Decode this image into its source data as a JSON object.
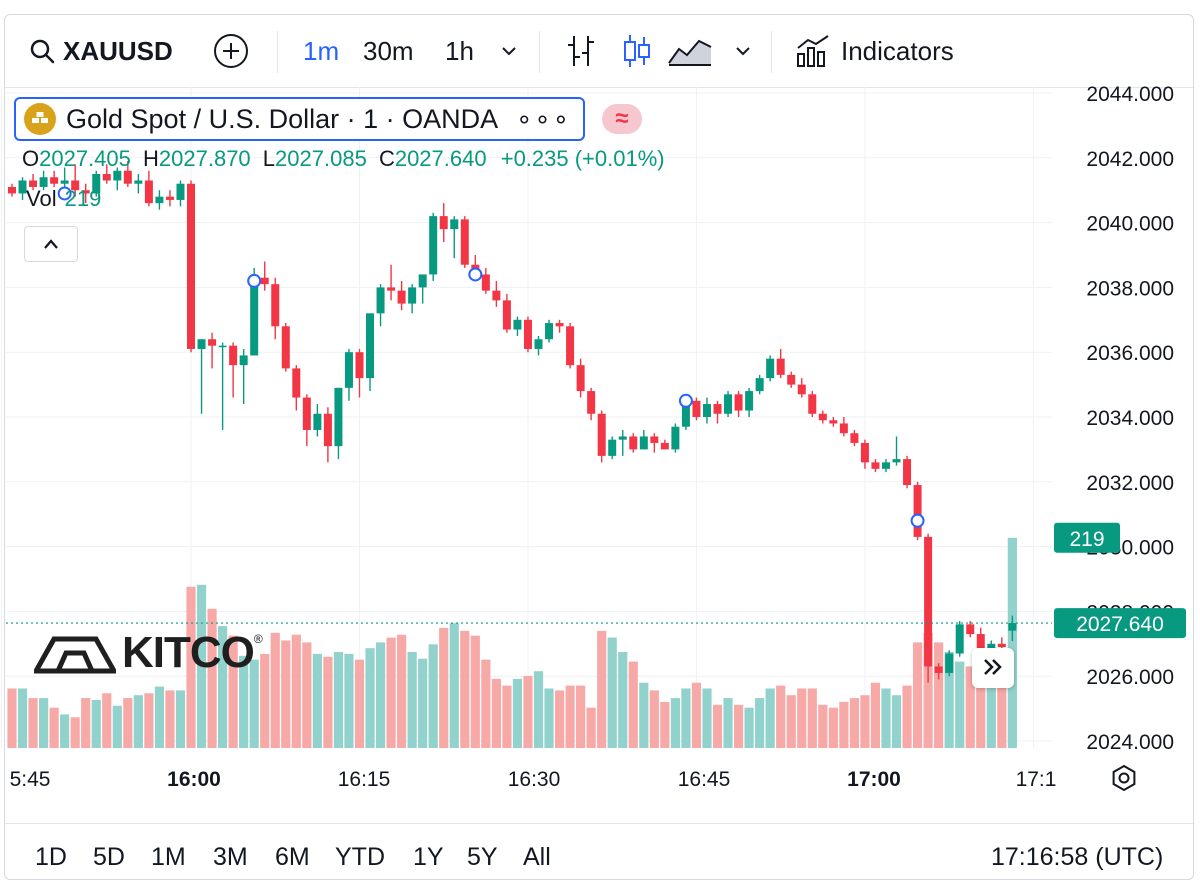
{
  "toolbar": {
    "symbol": "XAUUSD",
    "intervals": [
      "1m",
      "30m",
      "1h"
    ],
    "active_interval": "1m",
    "indicators_label": "Indicators"
  },
  "legend": {
    "title": "Gold Spot / U.S. Dollar · 1 · OANDA",
    "more": "∘∘∘",
    "wave": "≈",
    "o_label": "O",
    "o_value": "2027.405",
    "h_label": "H",
    "h_value": "2027.870",
    "l_label": "L",
    "l_value": "2027.085",
    "c_label": "C",
    "c_value": "2027.640",
    "change": "+0.235 (+0.01%)",
    "vol_label": "Vol",
    "vol_value": "219"
  },
  "watermark": {
    "brand": "KITCO",
    "reg": "®"
  },
  "range_buttons": [
    "1D",
    "5D",
    "1M",
    "3M",
    "6M",
    "YTD",
    "1Y",
    "5Y",
    "All"
  ],
  "clock": "17:16:58 (UTC)",
  "colors": {
    "up": "#089981",
    "down": "#f23645",
    "up_vol": "#92d2cc",
    "down_vol": "#f7a9a7",
    "accent": "#2962ff"
  },
  "chart_data": {
    "type": "candlestick",
    "y_axis": {
      "ticks": [
        "2024.000",
        "2026.000",
        "2028.000",
        "2030.000",
        "2032.000",
        "2034.000",
        "2036.000",
        "2038.000",
        "2040.000",
        "2042.000",
        "2044.000"
      ],
      "range": [
        2023.8,
        2044.3
      ]
    },
    "x_axis": {
      "ticks": [
        {
          "label": "5:45",
          "bold": false
        },
        {
          "label": "16:00",
          "bold": true
        },
        {
          "label": "16:15",
          "bold": false
        },
        {
          "label": "16:30",
          "bold": false
        },
        {
          "label": "16:45",
          "bold": false
        },
        {
          "label": "17:00",
          "bold": true
        },
        {
          "label": "17:1",
          "bold": false
        }
      ]
    },
    "last_price": "2027.640",
    "last_volume": "219",
    "candles": [
      [
        2041.1,
        2041.2,
        2040.8,
        2040.9,
        62
      ],
      [
        2040.9,
        2041.4,
        2040.7,
        2041.3,
        62
      ],
      [
        2041.3,
        2041.5,
        2041.0,
        2041.1,
        52
      ],
      [
        2041.1,
        2041.6,
        2041.0,
        2041.4,
        52
      ],
      [
        2041.4,
        2041.6,
        2041.1,
        2041.2,
        42
      ],
      [
        2041.2,
        2041.7,
        2041.0,
        2041.3,
        35
      ],
      [
        2041.3,
        2041.8,
        2040.8,
        2041.0,
        32
      ],
      [
        2041.0,
        2041.2,
        2040.6,
        2040.9,
        52
      ],
      [
        2040.9,
        2041.6,
        2040.8,
        2041.5,
        50
      ],
      [
        2041.5,
        2041.8,
        2041.2,
        2041.3,
        57
      ],
      [
        2041.3,
        2041.7,
        2041.0,
        2041.6,
        44
      ],
      [
        2041.6,
        2041.9,
        2041.1,
        2041.2,
        52
      ],
      [
        2041.2,
        2041.5,
        2040.9,
        2041.3,
        55
      ],
      [
        2041.3,
        2041.6,
        2040.5,
        2040.6,
        57
      ],
      [
        2040.6,
        2041.0,
        2040.4,
        2040.8,
        64
      ],
      [
        2040.8,
        2041.0,
        2040.5,
        2040.7,
        60
      ],
      [
        2040.7,
        2041.3,
        2040.5,
        2041.2,
        60
      ],
      [
        2041.2,
        2041.3,
        2036.0,
        2036.1,
        168
      ],
      [
        2036.1,
        2036.4,
        2034.1,
        2036.4,
        170
      ],
      [
        2036.4,
        2036.6,
        2035.5,
        2036.2,
        145
      ],
      [
        2036.2,
        2036.3,
        2033.6,
        2036.2,
        127
      ],
      [
        2036.2,
        2036.3,
        2034.6,
        2035.6,
        117
      ],
      [
        2035.6,
        2036.1,
        2034.4,
        2035.9,
        96
      ],
      [
        2035.9,
        2038.6,
        2035.9,
        2038.3,
        92
      ],
      [
        2038.3,
        2038.8,
        2037.9,
        2038.1,
        98
      ],
      [
        2038.1,
        2038.3,
        2036.4,
        2036.8,
        120
      ],
      [
        2036.8,
        2036.9,
        2035.4,
        2035.5,
        112
      ],
      [
        2035.5,
        2035.6,
        2034.2,
        2034.6,
        118
      ],
      [
        2034.6,
        2034.7,
        2033.1,
        2033.6,
        110
      ],
      [
        2033.6,
        2034.4,
        2033.4,
        2034.1,
        98
      ],
      [
        2034.1,
        2034.3,
        2032.6,
        2033.1,
        95
      ],
      [
        2033.1,
        2034.9,
        2032.7,
        2034.9,
        100
      ],
      [
        2034.9,
        2036.1,
        2034.5,
        2036.0,
        98
      ],
      [
        2036.0,
        2036.1,
        2034.6,
        2035.2,
        92
      ],
      [
        2035.2,
        2037.2,
        2034.8,
        2037.2,
        104
      ],
      [
        2037.2,
        2038.1,
        2036.8,
        2038.0,
        110
      ],
      [
        2038.0,
        2038.7,
        2037.6,
        2037.9,
        115
      ],
      [
        2037.9,
        2038.2,
        2037.3,
        2037.5,
        118
      ],
      [
        2037.5,
        2038.1,
        2037.2,
        2038.0,
        100
      ],
      [
        2038.0,
        2038.4,
        2037.5,
        2038.4,
        93
      ],
      [
        2038.4,
        2040.3,
        2038.2,
        2040.2,
        108
      ],
      [
        2040.2,
        2040.6,
        2039.4,
        2039.8,
        125
      ],
      [
        2039.8,
        2040.2,
        2038.9,
        2040.1,
        130
      ],
      [
        2040.1,
        2040.2,
        2038.6,
        2038.7,
        122
      ],
      [
        2038.7,
        2039.0,
        2038.2,
        2038.4,
        117
      ],
      [
        2038.4,
        2038.6,
        2037.8,
        2037.9,
        92
      ],
      [
        2037.9,
        2038.2,
        2037.4,
        2037.6,
        72
      ],
      [
        2037.6,
        2037.8,
        2036.6,
        2036.7,
        65
      ],
      [
        2036.7,
        2037.1,
        2036.5,
        2037.0,
        72
      ],
      [
        2037.0,
        2037.1,
        2036.0,
        2036.1,
        75
      ],
      [
        2036.1,
        2036.5,
        2035.9,
        2036.4,
        80
      ],
      [
        2036.4,
        2037.0,
        2036.3,
        2036.9,
        62
      ],
      [
        2036.9,
        2037.0,
        2036.6,
        2036.8,
        60
      ],
      [
        2036.8,
        2036.9,
        2035.5,
        2035.6,
        65
      ],
      [
        2035.6,
        2035.8,
        2034.6,
        2034.8,
        65
      ],
      [
        2034.8,
        2034.9,
        2033.9,
        2034.1,
        42
      ],
      [
        2034.1,
        2034.2,
        2032.6,
        2032.8,
        122
      ],
      [
        2032.8,
        2033.4,
        2032.7,
        2033.3,
        115
      ],
      [
        2033.3,
        2033.6,
        2032.8,
        2033.4,
        100
      ],
      [
        2033.4,
        2033.5,
        2032.9,
        2033.0,
        90
      ],
      [
        2033.0,
        2033.6,
        2033.0,
        2033.4,
        68
      ],
      [
        2033.4,
        2033.5,
        2032.9,
        2033.2,
        60
      ],
      [
        2033.2,
        2033.3,
        2033.0,
        2033.0,
        48
      ],
      [
        2033.0,
        2033.8,
        2032.9,
        2033.7,
        52
      ],
      [
        2033.7,
        2034.6,
        2033.6,
        2034.5,
        62
      ],
      [
        2034.5,
        2034.6,
        2033.9,
        2034.0,
        68
      ],
      [
        2034.0,
        2034.6,
        2033.8,
        2034.4,
        62
      ],
      [
        2034.4,
        2034.5,
        2033.8,
        2034.1,
        45
      ],
      [
        2034.1,
        2034.8,
        2034.0,
        2034.7,
        52
      ],
      [
        2034.7,
        2034.8,
        2034.0,
        2034.2,
        45
      ],
      [
        2034.2,
        2034.9,
        2034.0,
        2034.8,
        42
      ],
      [
        2034.8,
        2035.3,
        2034.7,
        2035.2,
        52
      ],
      [
        2035.2,
        2035.9,
        2035.1,
        2035.8,
        62
      ],
      [
        2035.8,
        2036.1,
        2035.2,
        2035.3,
        65
      ],
      [
        2035.3,
        2035.4,
        2034.9,
        2035.0,
        55
      ],
      [
        2035.0,
        2035.2,
        2034.6,
        2034.7,
        62
      ],
      [
        2034.7,
        2034.8,
        2034.0,
        2034.1,
        62
      ],
      [
        2034.1,
        2034.2,
        2033.8,
        2033.9,
        45
      ],
      [
        2033.9,
        2034.0,
        2033.7,
        2033.8,
        42
      ],
      [
        2033.8,
        2034.0,
        2033.4,
        2033.5,
        48
      ],
      [
        2033.5,
        2033.6,
        2033.1,
        2033.2,
        52
      ],
      [
        2033.2,
        2033.3,
        2032.4,
        2032.6,
        55
      ],
      [
        2032.6,
        2032.7,
        2032.3,
        2032.4,
        68
      ],
      [
        2032.4,
        2032.7,
        2032.3,
        2032.6,
        62
      ],
      [
        2032.6,
        2033.4,
        2032.5,
        2032.7,
        55
      ],
      [
        2032.7,
        2032.8,
        2031.8,
        2031.9,
        65
      ],
      [
        2031.9,
        2032.0,
        2030.2,
        2030.3,
        110
      ],
      [
        2030.3,
        2030.4,
        2025.8,
        2026.3,
        120
      ],
      [
        2026.3,
        2026.4,
        2025.9,
        2026.1,
        110
      ],
      [
        2026.1,
        2026.8,
        2026.0,
        2026.7,
        100
      ],
      [
        2026.7,
        2027.7,
        2026.6,
        2027.6,
        90
      ],
      [
        2027.6,
        2027.7,
        2027.2,
        2027.3,
        85
      ],
      [
        2027.3,
        2027.5,
        2026.6,
        2026.7,
        80
      ],
      [
        2026.7,
        2027.1,
        2026.5,
        2027.0,
        72
      ],
      [
        2027.0,
        2027.2,
        2026.8,
        2026.9,
        75
      ],
      [
        2027.405,
        2027.87,
        2027.085,
        2027.64,
        219
      ]
    ],
    "markers": [
      [
        5,
        2040.9
      ],
      [
        23,
        2038.2
      ],
      [
        44,
        2038.4
      ],
      [
        64,
        2034.5
      ],
      [
        86,
        2030.8
      ]
    ]
  }
}
